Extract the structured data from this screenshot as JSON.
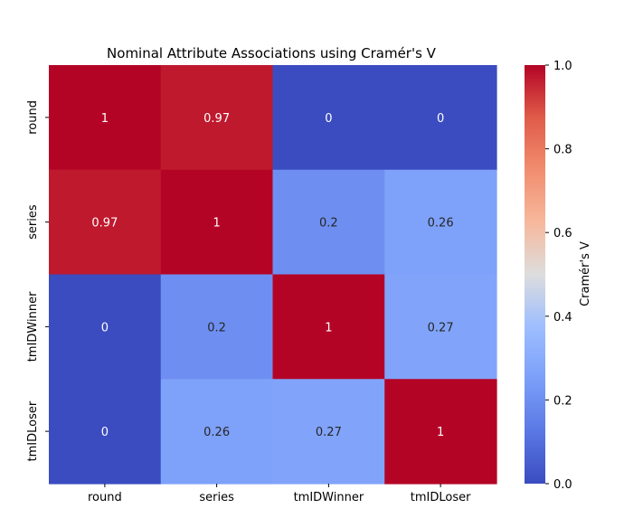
{
  "chart_data": {
    "type": "heatmap",
    "title": "Nominal Attribute Associations using Cramér's V",
    "rows": [
      "round",
      "series",
      "tmIDWinner",
      "tmIDLoser"
    ],
    "cols": [
      "round",
      "series",
      "tmIDWinner",
      "tmIDLoser"
    ],
    "values": [
      [
        1,
        0.97,
        0,
        0
      ],
      [
        0.97,
        1,
        0.2,
        0.26
      ],
      [
        0,
        0.2,
        1,
        0.27
      ],
      [
        0,
        0.26,
        0.27,
        1
      ]
    ],
    "value_labels": [
      [
        "1",
        "0.97",
        "0",
        "0"
      ],
      [
        "0.97",
        "1",
        "0.2",
        "0.26"
      ],
      [
        "0",
        "0.2",
        "1",
        "0.27"
      ],
      [
        "0",
        "0.26",
        "0.27",
        "1"
      ]
    ],
    "colorbar": {
      "label": "Cramér's V",
      "range": [
        0.0,
        1.0
      ],
      "ticks": [
        "0.0",
        "0.2",
        "0.4",
        "0.6",
        "0.8",
        "1.0"
      ],
      "colormap": "coolwarm"
    }
  }
}
